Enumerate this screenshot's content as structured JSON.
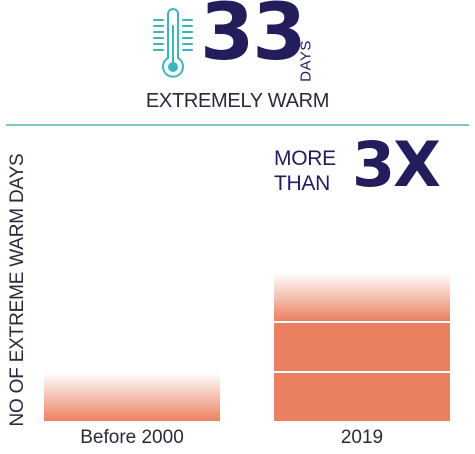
{
  "header": {
    "number": "33",
    "unit": "DAYS",
    "caption": "EXTREMELY WARM",
    "icon": "thermometer-icon"
  },
  "annotation": {
    "prefix_line1": "MORE",
    "prefix_line2": "THAN",
    "multiplier": "3X"
  },
  "colors": {
    "bar": "#eb8060",
    "accent_text": "#231d5c",
    "divider": "#7fc6cc",
    "icon": "#3fb4bd"
  },
  "chart_data": {
    "type": "bar",
    "categories": [
      "Before 2000",
      "2019"
    ],
    "values": [
      1,
      3
    ],
    "ylabel": "NO OF EXTREME WARM DAYS",
    "xlabel": "",
    "ylim": [
      0,
      3.3
    ],
    "grid": false,
    "legend": "none"
  }
}
